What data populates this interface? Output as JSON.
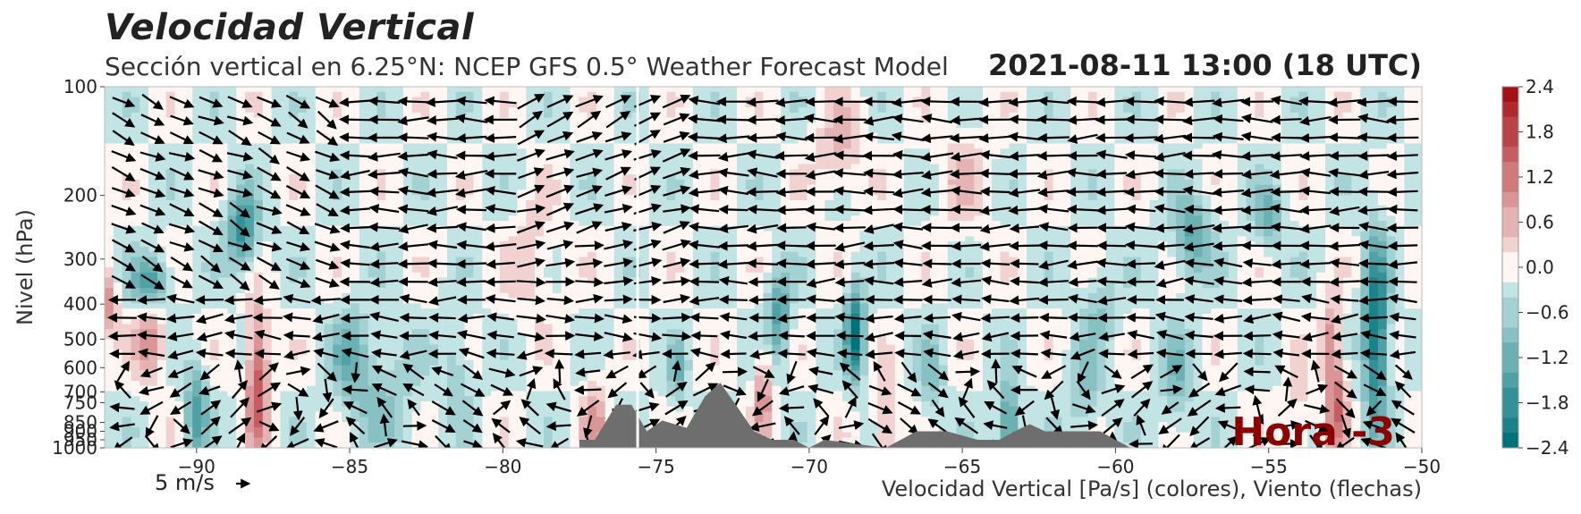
{
  "title": "Velocidad Vertical",
  "subtitle": "Sección vertical en 6.25°N: NCEP GFS 0.5° Weather Forecast Model",
  "datetime": "2021-08-11 13:00 (18 UTC)",
  "hour_label": "Hora -3",
  "quiver_key": "5 m/s",
  "chart_data": {
    "type": "heatmap",
    "subtype": "cross-section contourf + wind quiver + terrain",
    "title": "Velocidad Vertical",
    "subtitle": "Sección vertical en 6.25°N: NCEP GFS 0.5° Weather Forecast Model",
    "xlabel": "Velocidad Vertical [Pa/s] (colores), Viento (flechas)",
    "ylabel": "Nivel (hPa)",
    "xlim": [
      -93,
      -50
    ],
    "ylim": [
      1000,
      100
    ],
    "y_scale": "log",
    "x_ticks": [
      -90,
      -85,
      -80,
      -75,
      -70,
      -65,
      -60,
      -55,
      -50
    ],
    "x_tick_labels": [
      "−90",
      "−85",
      "−80",
      "−75",
      "−70",
      "−65",
      "−60",
      "−55",
      "−50"
    ],
    "y_ticks": [
      100,
      200,
      300,
      400,
      500,
      600,
      700,
      750,
      850,
      900,
      950,
      1000
    ],
    "y_tick_labels": [
      "100",
      "200",
      "300",
      "400",
      "500",
      "600",
      "700",
      "750",
      "850",
      "900",
      "950",
      "1000"
    ],
    "colorbar": {
      "ticks": [
        2.4,
        1.8,
        1.2,
        0.6,
        0.0,
        -0.6,
        -1.2,
        -1.8,
        -2.4
      ],
      "tick_labels": [
        "2.4",
        "1.8",
        "1.2",
        "0.6",
        "0.0",
        "−0.6",
        "−1.2",
        "−1.8",
        "−2.4"
      ],
      "range": [
        -2.4,
        2.4
      ],
      "levels": 24,
      "colormap": "teal (negative) – white – dark red (positive)",
      "neg_color": "#00737a",
      "pos_color": "#a50f15"
    },
    "vertical_marker_x": -75.6,
    "terrain": {
      "color": "#6e6e6e",
      "lon": [
        -77.5,
        -77.0,
        -76.3,
        -75.8,
        -75.3,
        -74.8,
        -74.0,
        -73.4,
        -72.9,
        -72.4,
        -71.8,
        -71.2,
        -70.5,
        -70.0,
        -69.5,
        -67.5,
        -66.5,
        -65.5,
        -64.5,
        -63.8,
        -63.3,
        -62.8,
        -62.3,
        -61.5,
        -60.5,
        -60.0,
        -59.5
      ],
      "pressure": [
        950,
        950,
        760,
        760,
        900,
        840,
        880,
        720,
        660,
        760,
        900,
        950,
        950,
        1000,
        950,
        1000,
        900,
        900,
        950,
        950,
        900,
        860,
        900,
        900,
        900,
        950,
        1000
      ]
    },
    "wind_arrows": "dense quiver field, black arrows; predominantly westward/easterly flow at upper levels (200–500 hPa), mixed near surface"
  }
}
